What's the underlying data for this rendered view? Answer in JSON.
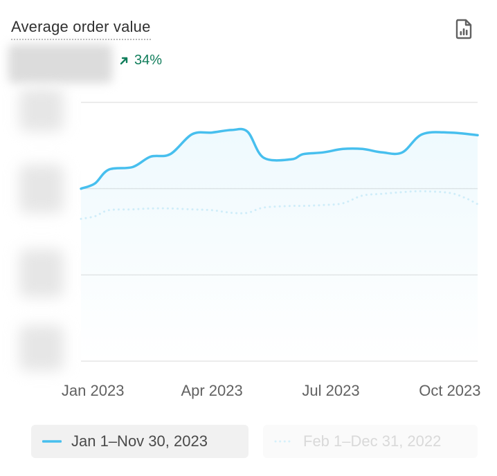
{
  "card": {
    "title": "Average order value",
    "change": "34%",
    "export_icon": "report-icon",
    "change_icon": "arrow-up-right-icon"
  },
  "colors": {
    "current": "#47bfee",
    "previous": "#cfedf9",
    "positive": "#107d5b",
    "grid": "#e6e6e6"
  },
  "legend": {
    "current": "Jan 1–Nov 30, 2023",
    "previous": "Feb 1–Dec 31, 2022"
  },
  "chart_data": {
    "type": "line",
    "xlabel": "",
    "ylabel": "",
    "y_tick_labels_hidden": true,
    "x_ticks": [
      {
        "label": "Jan 2023",
        "x": 0.3
      },
      {
        "label": "Apr 2023",
        "x": 3.3
      },
      {
        "label": "Jul 2023",
        "x": 6.3
      },
      {
        "label": "Oct 2023",
        "x": 9.3
      }
    ],
    "x_range": [
      0,
      10
    ],
    "ylim": [
      0,
      3
    ],
    "grid": true,
    "legend_position": "bottom",
    "series": [
      {
        "name": "Jan 1–Nov 30, 2023",
        "style": "solid",
        "points": [
          [
            0.0,
            2.0
          ],
          [
            0.35,
            2.06
          ],
          [
            0.7,
            2.22
          ],
          [
            1.3,
            2.25
          ],
          [
            1.75,
            2.37
          ],
          [
            2.25,
            2.4
          ],
          [
            2.8,
            2.63
          ],
          [
            3.3,
            2.65
          ],
          [
            3.8,
            2.68
          ],
          [
            4.2,
            2.66
          ],
          [
            4.6,
            2.36
          ],
          [
            5.3,
            2.34
          ],
          [
            5.6,
            2.4
          ],
          [
            6.1,
            2.42
          ],
          [
            6.6,
            2.46
          ],
          [
            7.1,
            2.46
          ],
          [
            7.6,
            2.42
          ],
          [
            8.1,
            2.42
          ],
          [
            8.6,
            2.63
          ],
          [
            9.3,
            2.65
          ],
          [
            10.0,
            2.62
          ]
        ]
      },
      {
        "name": "Feb 1–Dec 31, 2022",
        "style": "dotted",
        "points": [
          [
            0.0,
            1.65
          ],
          [
            0.35,
            1.68
          ],
          [
            0.7,
            1.75
          ],
          [
            1.3,
            1.76
          ],
          [
            1.75,
            1.77
          ],
          [
            2.25,
            1.77
          ],
          [
            2.8,
            1.76
          ],
          [
            3.3,
            1.75
          ],
          [
            3.8,
            1.72
          ],
          [
            4.2,
            1.72
          ],
          [
            4.6,
            1.78
          ],
          [
            5.3,
            1.8
          ],
          [
            5.6,
            1.8
          ],
          [
            6.1,
            1.81
          ],
          [
            6.6,
            1.83
          ],
          [
            7.1,
            1.92
          ],
          [
            7.6,
            1.94
          ],
          [
            8.1,
            1.96
          ],
          [
            8.6,
            1.97
          ],
          [
            9.3,
            1.95
          ],
          [
            9.7,
            1.89
          ],
          [
            10.0,
            1.82
          ]
        ]
      }
    ]
  }
}
